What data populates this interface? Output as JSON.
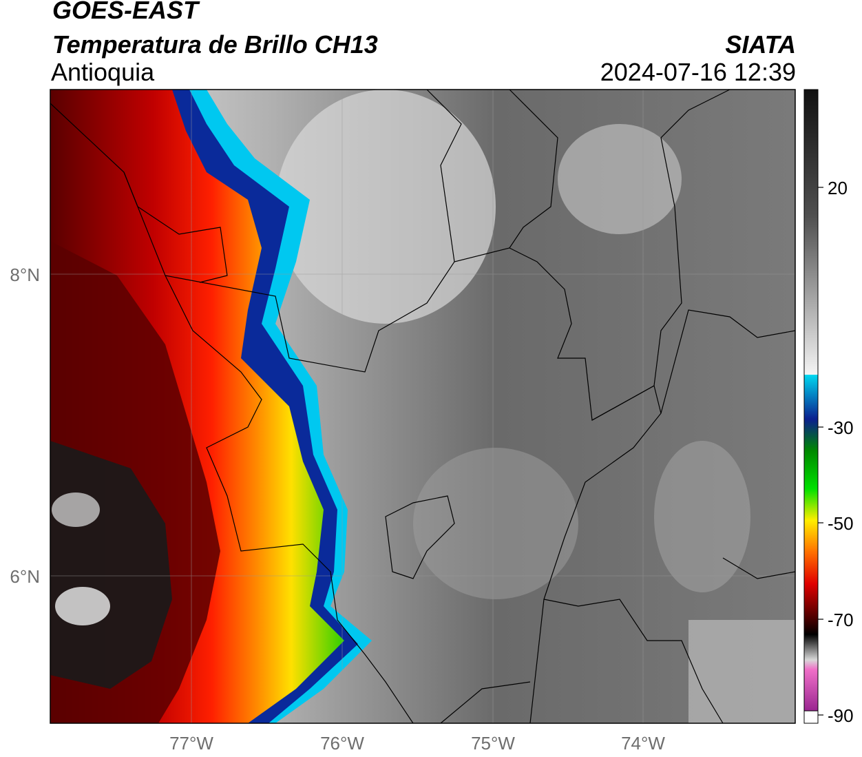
{
  "header": {
    "satellite": "GOES-EAST",
    "product": "Temperatura de Brillo CH13",
    "region": "Antioquia",
    "organization": "SIATA",
    "datetime": "2024-07-16 12:39"
  },
  "map": {
    "longitude_ticks": [
      "77°W",
      "76°W",
      "75°W",
      "74°W"
    ],
    "latitude_ticks": [
      "8°N",
      "6°N"
    ]
  },
  "colorbar": {
    "tick_labels": [
      "20",
      "-30",
      "-50",
      "-70",
      "-90"
    ],
    "colors": {
      "gray_warm": "#3a3a3a",
      "gray_light": "#f2f2f2",
      "cyan": "#00d0f0",
      "blue_dark": "#0a1f8f",
      "green": "#00c800",
      "yellow": "#ffe800",
      "red": "#e00000",
      "dark_red": "#5a0000",
      "black": "#000000",
      "pink": "#e060c0",
      "purple": "#8a2090"
    }
  }
}
